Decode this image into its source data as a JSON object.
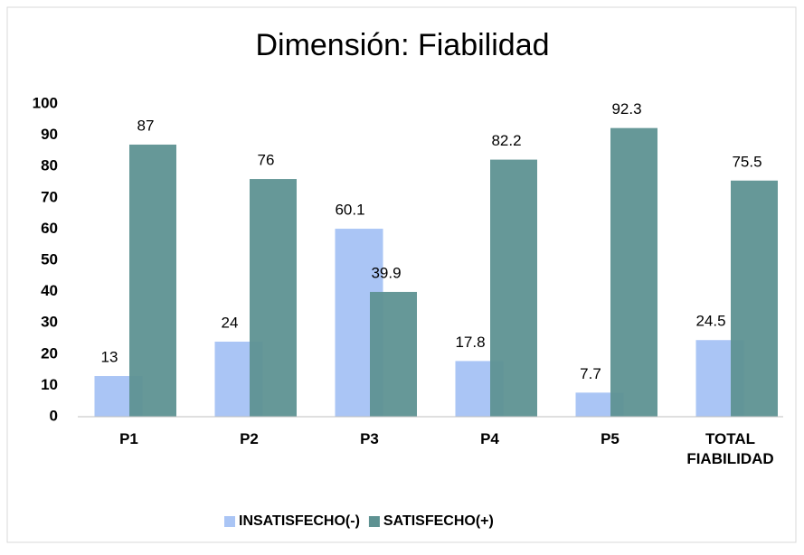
{
  "chart_data": {
    "type": "bar",
    "title": "Dimensión: Fiabilidad",
    "categories": [
      "P1",
      "P2",
      "P3",
      "P4",
      "P5",
      "TOTAL FIABILIDAD"
    ],
    "series": [
      {
        "name": "INSATISFECHO(-)",
        "color": "#aac5f5",
        "values": [
          13,
          24,
          60.1,
          17.8,
          7.7,
          24.5
        ]
      },
      {
        "name": "SATISFECHO(+)",
        "color": "#5e9292",
        "values": [
          87,
          76,
          39.9,
          82.2,
          92.3,
          75.5
        ]
      }
    ],
    "ylim": [
      0,
      100
    ],
    "yticks": [
      0,
      10,
      20,
      30,
      40,
      50,
      60,
      70,
      80,
      90,
      100
    ],
    "grid": false,
    "legend": "bottom"
  }
}
